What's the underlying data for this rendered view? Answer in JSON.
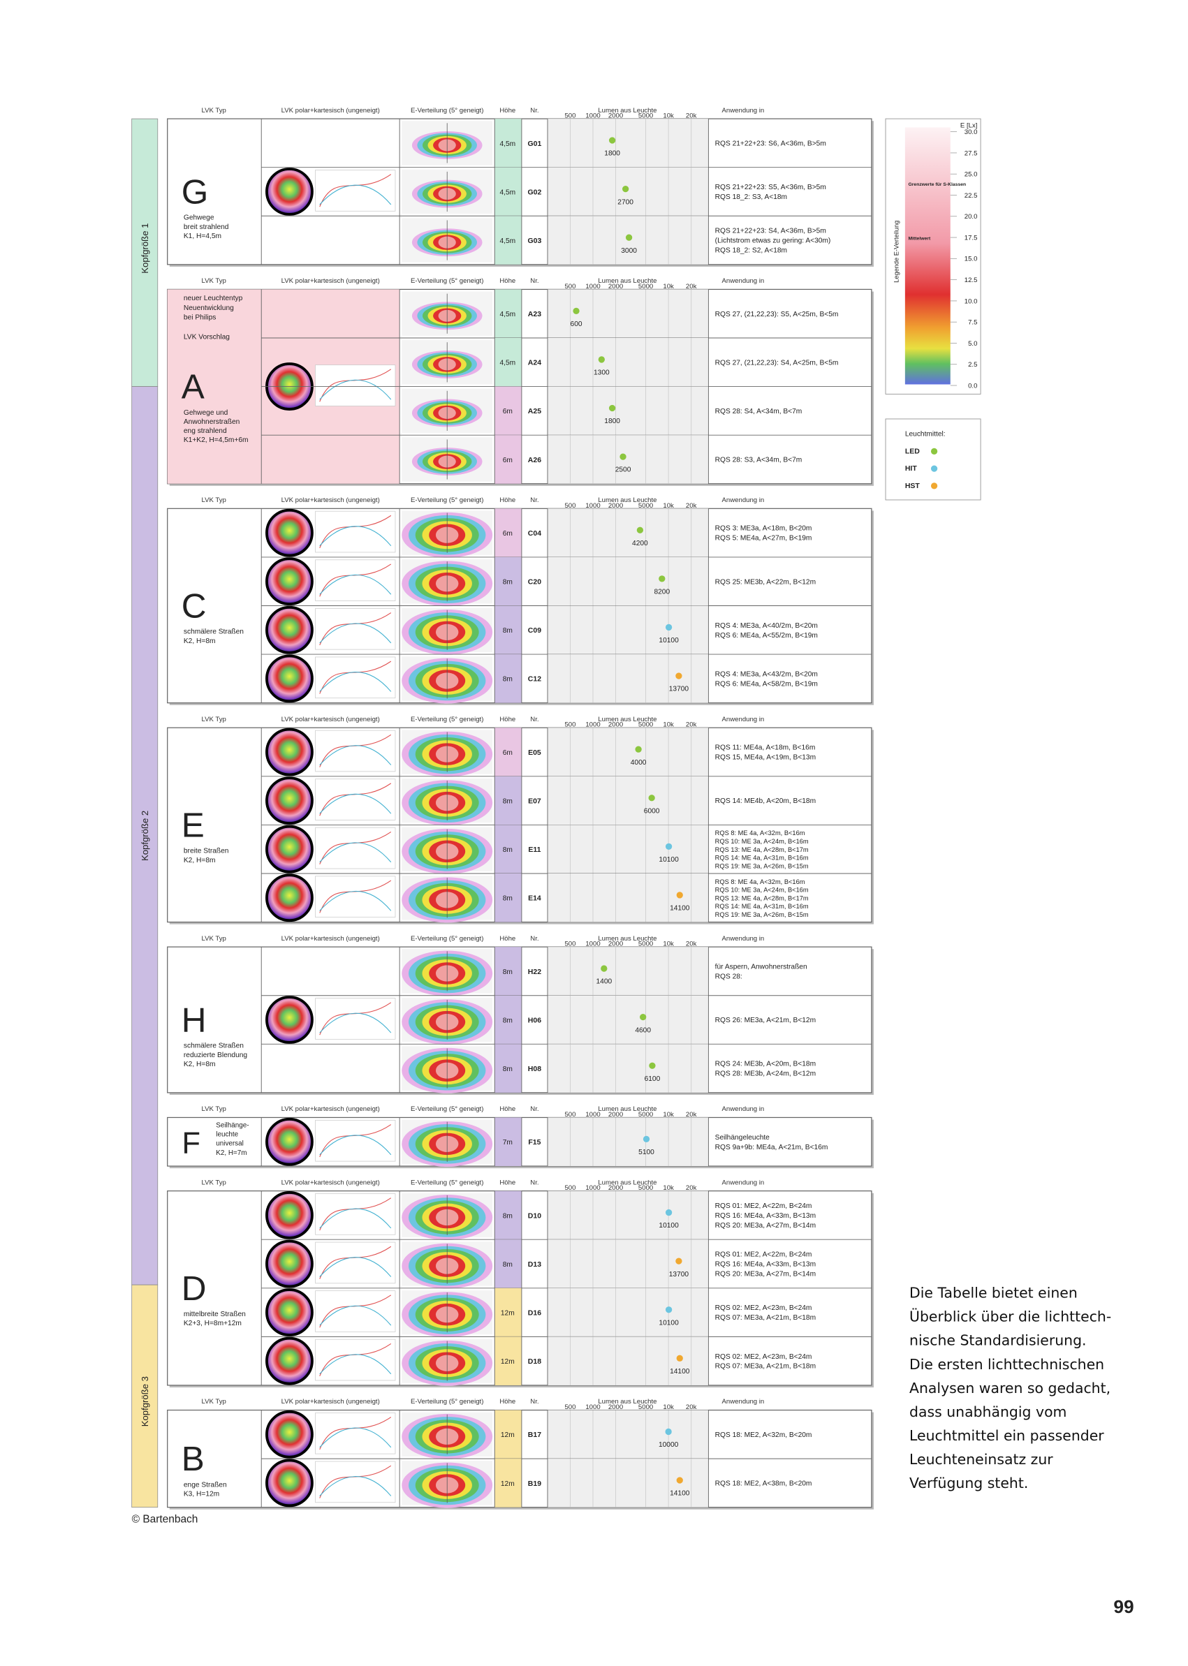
{
  "headers": [
    "LVK Typ",
    "LVK polar+kartesisch (ungeneigt)",
    "E-Verteilung (5° geneigt)",
    "Höhe",
    "Nr.",
    "Lumen aus Leuchte",
    "Anwendung in"
  ],
  "lumen_ticks": [
    500,
    1000,
    2000,
    5000,
    {
      "value": 10000,
      "label": "10k"
    },
    {
      "value": 20000,
      "label": "20k"
    }
  ],
  "lumen_range": [
    500,
    20000
  ],
  "size_bars": [
    {
      "label": "Kopfgröße 1",
      "color": "#c6ead8"
    },
    {
      "label": "Kopfgröße 2",
      "color": "#cbbde3"
    },
    {
      "label": "Kopfgröße 3",
      "color": "#f8e4a0"
    }
  ],
  "groups": [
    {
      "letter": "G",
      "description": [
        "Gehwege",
        "breit strahlend",
        "K1, H=4,5m"
      ],
      "rows": [
        {
          "height": "4,5m",
          "height_color": "#c6ead8",
          "nr": "G01",
          "lumen": 1800,
          "lamp_color": "#8cc63f",
          "application": [
            "RQS 21+22+23: S6, A<36m, B>5m"
          ]
        },
        {
          "height": "4,5m",
          "height_color": "#c6ead8",
          "nr": "G02",
          "lumen": 2700,
          "lamp_color": "#8cc63f",
          "application": [
            "RQS 21+22+23: S5, A<36m, B>5m",
            "RQS 18_2: S3, A<18m"
          ]
        },
        {
          "height": "4,5m",
          "height_color": "#c6ead8",
          "nr": "G03",
          "lumen": 3000,
          "lamp_color": "#8cc63f",
          "application": [
            "RQS 21+22+23: S4, A<36m, B>5m",
            "(Lichtstrom etwas zu gering: A<30m)",
            "RQS 18_2: S2, A<18m"
          ]
        }
      ]
    },
    {
      "letter": "A",
      "background": "#f9d6dc",
      "note": [
        "neuer Leuchtentyp",
        "Neuentwicklung",
        "bei Philips",
        "",
        "LVK Vorschlag"
      ],
      "description": [
        "Gehwege und",
        "Anwohnerstraßen",
        "eng strahlend",
        "K1+K2, H=4,5m+6m"
      ],
      "rows": [
        {
          "height": "4,5m",
          "height_color": "#c6ead8",
          "nr": "A23",
          "lumen": 600,
          "lamp_color": "#8cc63f",
          "application": [
            "RQS 27, (21,22,23): S5, A<25m, B<5m"
          ]
        },
        {
          "height": "4,5m",
          "height_color": "#c6ead8",
          "nr": "A24",
          "lumen": 1300,
          "lamp_color": "#8cc63f",
          "application": [
            "RQS 27, (21,22,23): S4, A<25m, B<5m"
          ]
        },
        {
          "height": "6m",
          "height_color": "#e9c6e3",
          "nr": "A25",
          "lumen": 1800,
          "lamp_color": "#8cc63f",
          "application": [
            "RQS 28: S4, A<34m, B<7m"
          ]
        },
        {
          "height": "6m",
          "height_color": "#e9c6e3",
          "nr": "A26",
          "lumen": 2500,
          "lamp_color": "#8cc63f",
          "application": [
            "RQS 28: S3, A<34m, B<7m"
          ]
        }
      ]
    },
    {
      "letter": "C",
      "description": [
        "schmälere Straßen",
        "K2, H=8m"
      ],
      "rows": [
        {
          "height": "6m",
          "height_color": "#e9c6e3",
          "nr": "C04",
          "lumen": 4200,
          "lamp_color": "#8cc63f",
          "application": [
            "RQS 3: ME3a, A<18m, B<20m",
            "RQS 5: ME4a, A<27m, B<19m"
          ]
        },
        {
          "height": "8m",
          "height_color": "#cbbde3",
          "nr": "C20",
          "lumen": 8200,
          "lamp_color": "#8cc63f",
          "application": [
            "RQS 25: ME3b, A<22m, B<12m"
          ]
        },
        {
          "height": "8m",
          "height_color": "#cbbde3",
          "nr": "C09",
          "lumen": 10100,
          "lamp_color": "#6cc5e0",
          "application": [
            "RQS 4: ME3a, A<40/2m, B<20m",
            "RQS 6: ME4a, A<55/2m, B<19m"
          ]
        },
        {
          "height": "8m",
          "height_color": "#cbbde3",
          "nr": "C12",
          "lumen": 13700,
          "lamp_color": "#f0a830",
          "application": [
            "RQS 4: ME3a, A<43/2m, B<20m",
            "RQS 6: ME4a, A<58/2m, B<19m"
          ]
        }
      ]
    },
    {
      "letter": "E",
      "description": [
        "breite Straßen",
        "K2, H=8m"
      ],
      "rows": [
        {
          "height": "6m",
          "height_color": "#e9c6e3",
          "nr": "E05",
          "lumen": 4000,
          "lamp_color": "#8cc63f",
          "application": [
            "RQS 11: ME4a, A<18m, B<16m",
            "RQS 15, ME4a, A<19m, B<13m"
          ]
        },
        {
          "height": "8m",
          "height_color": "#cbbde3",
          "nr": "E07",
          "lumen": 6000,
          "lamp_color": "#8cc63f",
          "application": [
            "RQS 14: ME4b, A<20m, B<18m"
          ]
        },
        {
          "height": "8m",
          "height_color": "#cbbde3",
          "nr": "E11",
          "lumen": 10100,
          "lamp_color": "#6cc5e0",
          "application": [
            "RQS  8: ME 4a, A<32m, B<16m",
            "RQS 10: ME 3a, A<24m, B<16m",
            "RQS 13: ME 4a, A<28m, B<17m",
            "RQS 14: ME 4a, A<31m, B<16m",
            "RQS 19: ME 3a, A<26m, B<15m"
          ]
        },
        {
          "height": "8m",
          "height_color": "#cbbde3",
          "nr": "E14",
          "lumen": 14100,
          "lamp_color": "#f0a830",
          "application": [
            "RQS  8: ME 4a, A<32m, B<16m",
            "RQS 10: ME 3a, A<24m, B<16m",
            "RQS 13: ME 4a, A<28m, B<17m",
            "RQS 14: ME 4a, A<31m, B<16m",
            "RQS 19: ME 3a, A<26m, B<15m"
          ]
        }
      ]
    },
    {
      "letter": "H",
      "description": [
        "schmälere Straßen",
        "reduzierte Blendung",
        "K2, H=8m"
      ],
      "rows": [
        {
          "height": "8m",
          "height_color": "#cbbde3",
          "nr": "H22",
          "lumen": 1400,
          "lamp_color": "#8cc63f",
          "application": [
            "für Aspern, Anwohnerstraßen",
            "RQS 28:"
          ]
        },
        {
          "height": "8m",
          "height_color": "#cbbde3",
          "nr": "H06",
          "lumen": 4600,
          "lamp_color": "#8cc63f",
          "application": [
            "RQS 26: ME3a, A<21m, B<12m"
          ]
        },
        {
          "height": "8m",
          "height_color": "#cbbde3",
          "nr": "H08",
          "lumen": 6100,
          "lamp_color": "#8cc63f",
          "application": [
            "RQS 24: ME3b, A<20m, B<18m",
            "RQS 28: ME3b, A<24m, B<12m"
          ]
        }
      ]
    },
    {
      "letter": "F",
      "description": [
        "Seilhänge-",
        "leuchte",
        "universal",
        "K2, H=7m"
      ],
      "rows": [
        {
          "height": "7m",
          "height_color": "#cbbde3",
          "nr": "F15",
          "lumen": 5100,
          "lamp_color": "#6cc5e0",
          "application": [
            "Seilhängeleuchte",
            "RQS 9a+9b: ME4a, A<21m, B<16m"
          ]
        }
      ]
    },
    {
      "letter": "D",
      "description": [
        "mittelbreite Straßen",
        "K2+3, H=8m+12m"
      ],
      "rows": [
        {
          "height": "8m",
          "height_color": "#cbbde3",
          "nr": "D10",
          "lumen": 10100,
          "lamp_color": "#6cc5e0",
          "application": [
            "RQS 01: ME2,   A<22m, B<24m",
            "RQS 16: ME4a, A<33m, B<13m",
            "RQS 20: ME3a, A<27m, B<14m"
          ]
        },
        {
          "height": "8m",
          "height_color": "#cbbde3",
          "nr": "D13",
          "lumen": 13700,
          "lamp_color": "#f0a830",
          "application": [
            "RQS 01: ME2,   A<22m, B<24m",
            "RQS 16: ME4a, A<33m, B<13m",
            "RQS 20: ME3a, A<27m, B<14m"
          ]
        },
        {
          "height": "12m",
          "height_color": "#f8e4a0",
          "nr": "D16",
          "lumen": 10100,
          "lamp_color": "#6cc5e0",
          "application": [
            "RQS 02: ME2,   A<23m, B<24m",
            "RQS 07: ME3a, A<21m, B<18m"
          ]
        },
        {
          "height": "12m",
          "height_color": "#f8e4a0",
          "nr": "D18",
          "lumen": 14100,
          "lamp_color": "#f0a830",
          "application": [
            "RQS 02: ME2,   A<23m, B<24m",
            "RQS 07: ME3a, A<21m, B<18m"
          ]
        }
      ]
    },
    {
      "letter": "B",
      "description": [
        "enge Straßen",
        "K3, H=12m"
      ],
      "rows": [
        {
          "height": "12m",
          "height_color": "#f8e4a0",
          "nr": "B17",
          "lumen": 10000,
          "lamp_color": "#6cc5e0",
          "application": [
            "RQS 18: ME2,  A<32m, B<20m"
          ]
        },
        {
          "height": "12m",
          "height_color": "#f8e4a0",
          "nr": "B19",
          "lumen": 14100,
          "lamp_color": "#f0a830",
          "application": [
            "RQS 18: ME2,  A<38m, B<20m"
          ]
        }
      ]
    }
  ],
  "legend": {
    "title": "Legende E-Verteilung",
    "unit": "E [Lx]",
    "ticks": [
      {
        "value": 30,
        "label": "30.0"
      },
      27.5,
      {
        "value": 25,
        "label": "25.0"
      },
      22.5,
      {
        "value": 20,
        "label": "20.0"
      },
      17.5,
      {
        "value": 15,
        "label": "15.0"
      },
      12.5,
      {
        "value": 10,
        "label": "10.0"
      },
      7.5,
      {
        "value": 5,
        "label": "5.0"
      },
      2.5,
      {
        "value": 0,
        "label": "0.0"
      }
    ],
    "range": [
      0,
      30
    ],
    "labels": [
      "Grenzwerte für S-Klassen",
      "Mittelwert"
    ]
  },
  "lamps": {
    "title": "Leuchtmittel:",
    "items": [
      {
        "name": "LED",
        "color": "#8cc63f"
      },
      {
        "name": "HIT",
        "color": "#6cc5e0"
      },
      {
        "name": "HST",
        "color": "#f0a830"
      }
    ]
  },
  "paragraph": [
    "Die Tabelle bietet einen",
    "Überblick über die lichttech-",
    "nische Standardisierung.",
    "Die ersten lichttechnischen",
    "Analysen waren so gedacht,",
    "dass unabhängig vom",
    "Leuchtmittel ein passender",
    "Leuchteneinsatz zur",
    "Verfügung steht."
  ],
  "copyright": "© Bartenbach",
  "page_number": "99"
}
